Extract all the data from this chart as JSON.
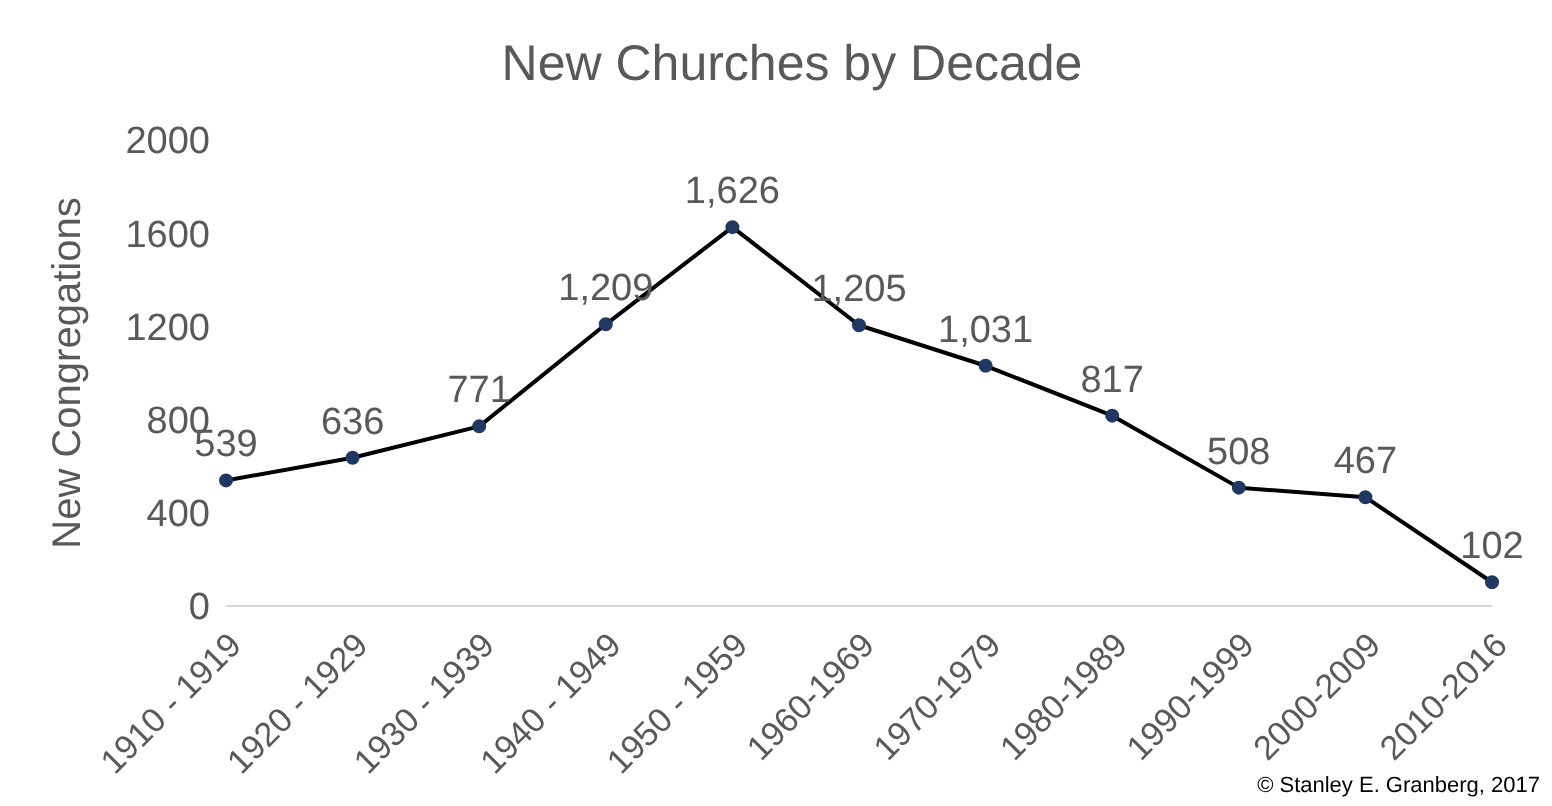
{
  "chart_data": {
    "type": "line",
    "title": "New Churches by Decade",
    "ylabel": "New Congregations",
    "categories": [
      "1910 - 1919",
      "1920 - 1929",
      "1930 - 1939",
      "1940 - 1949",
      "1950 - 1959",
      "1960-1969",
      "1970-1979",
      "1980-1989",
      "1990-1999",
      "2000-2009",
      "2010-2016"
    ],
    "series": [
      {
        "color": "#000000",
        "values": [
          539,
          636,
          771,
          1209,
          1626,
          1205,
          1031,
          817,
          508,
          467,
          102
        ]
      }
    ],
    "value_labels": [
      "539",
      "636",
      "771",
      "1,209",
      "1,626",
      "1,205",
      "1,031",
      "817",
      "508",
      "467",
      "102"
    ],
    "ylim": [
      0,
      2000
    ],
    "yticks": [
      0,
      400,
      800,
      1200,
      1600,
      2000
    ],
    "grid": false,
    "legend": false,
    "marker": "circle",
    "line_style": "solid",
    "annotations": [
      "© Stanley E. Granberg, 2017"
    ]
  }
}
